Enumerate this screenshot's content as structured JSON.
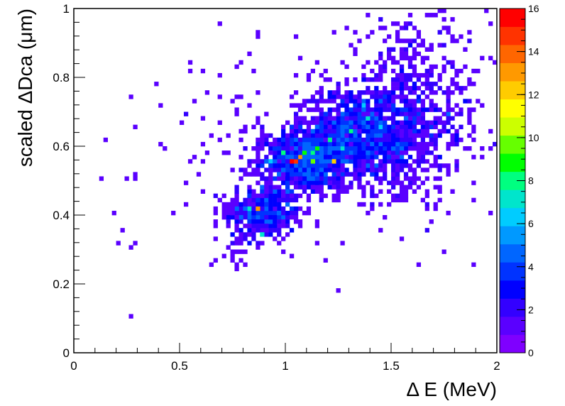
{
  "chart_data": {
    "type": "heatmap",
    "xlabel": "Δ E (MeV)",
    "ylabel": "scaled ΔDca (μm)",
    "xlim": [
      0,
      2
    ],
    "ylim": [
      0,
      1
    ],
    "zlim": [
      0,
      16
    ],
    "x_ticks": [
      "0",
      "0.5",
      "1",
      "1.5",
      "2"
    ],
    "y_ticks": [
      "0",
      "0.2",
      "0.4",
      "0.6",
      "0.8",
      "1"
    ],
    "z_ticks": [
      "0",
      "2",
      "4",
      "6",
      "8",
      "10",
      "12",
      "14",
      "16"
    ],
    "bin_width_x": 0.02,
    "bin_width_y": 0.0125,
    "colormap": [
      "#7f00ff",
      "#5a00ff",
      "#3300ff",
      "#0000ff",
      "#0033ff",
      "#0066ff",
      "#0099ff",
      "#00ccff",
      "#00e5cc",
      "#00ff80",
      "#00ff00",
      "#66ff00",
      "#ccff00",
      "#ffff00",
      "#ffcc00",
      "#ff9900",
      "#ff6600",
      "#ff3300",
      "#ff0000"
    ],
    "clusters": [
      {
        "x": 0.9,
        "y": 0.41,
        "sx": 0.09,
        "sy": 0.04,
        "n": 420
      },
      {
        "x": 1.1,
        "y": 0.56,
        "sx": 0.1,
        "sy": 0.04,
        "n": 900
      },
      {
        "x": 1.35,
        "y": 0.63,
        "sx": 0.15,
        "sy": 0.07,
        "n": 1200
      },
      {
        "x": 1.6,
        "y": 0.7,
        "sx": 0.18,
        "sy": 0.13,
        "n": 650
      },
      {
        "x": 0.95,
        "y": 0.6,
        "sx": 0.3,
        "sy": 0.12,
        "n": 160
      },
      {
        "x": 0.8,
        "y": 0.3,
        "sx": 0.05,
        "sy": 0.03,
        "n": 25
      }
    ],
    "hot_bins": [
      {
        "x": 1.02,
        "y": 0.56,
        "v": 16
      },
      {
        "x": 1.04,
        "y": 0.56,
        "v": 15
      },
      {
        "x": 1.06,
        "y": 0.565,
        "v": 13
      },
      {
        "x": 0.86,
        "y": 0.42,
        "v": 13
      },
      {
        "x": 1.22,
        "y": 0.56,
        "v": 12
      },
      {
        "x": 1.12,
        "y": 0.56,
        "v": 10
      },
      {
        "x": 1.08,
        "y": 0.58,
        "v": 9
      },
      {
        "x": 1.16,
        "y": 0.6,
        "v": 9
      },
      {
        "x": 1.2,
        "y": 0.62,
        "v": 8
      },
      {
        "x": 1.3,
        "y": 0.64,
        "v": 8
      },
      {
        "x": 0.98,
        "y": 0.58,
        "v": 8
      },
      {
        "x": 1.38,
        "y": 0.68,
        "v": 7
      },
      {
        "x": 1.26,
        "y": 0.6,
        "v": 7
      },
      {
        "x": 0.82,
        "y": 0.42,
        "v": 7
      },
      {
        "x": 0.88,
        "y": 0.34,
        "v": 7
      },
      {
        "x": 1.14,
        "y": 0.58,
        "v": 8
      },
      {
        "x": 0.94,
        "y": 0.56,
        "v": 6
      },
      {
        "x": 1.44,
        "y": 0.66,
        "v": 6
      },
      {
        "x": 1.36,
        "y": 0.72,
        "v": 6
      }
    ],
    "isolated_points": [
      {
        "x": 0.26,
        "y": 0.1,
        "v": 1
      },
      {
        "x": 0.26,
        "y": 0.31,
        "v": 1
      },
      {
        "x": 0.28,
        "y": 0.32,
        "v": 1
      },
      {
        "x": 0.22,
        "y": 0.36,
        "v": 1
      },
      {
        "x": 0.18,
        "y": 0.4,
        "v": 1
      },
      {
        "x": 0.24,
        "y": 0.5,
        "v": 1
      },
      {
        "x": 0.28,
        "y": 0.5,
        "v": 1
      },
      {
        "x": 0.28,
        "y": 0.65,
        "v": 1
      },
      {
        "x": 0.4,
        "y": 0.72,
        "v": 1
      },
      {
        "x": 0.42,
        "y": 0.6,
        "v": 1
      },
      {
        "x": 0.82,
        "y": 0.87,
        "v": 1
      },
      {
        "x": 0.76,
        "y": 0.83,
        "v": 1
      },
      {
        "x": 0.68,
        "y": 0.81,
        "v": 1
      },
      {
        "x": 0.62,
        "y": 0.75,
        "v": 1
      },
      {
        "x": 1.76,
        "y": 0.4,
        "v": 1
      },
      {
        "x": 1.96,
        "y": 0.41,
        "v": 1
      },
      {
        "x": 1.92,
        "y": 0.6,
        "v": 1
      },
      {
        "x": 1.96,
        "y": 0.6,
        "v": 1
      },
      {
        "x": 1.86,
        "y": 0.6,
        "v": 1
      },
      {
        "x": 1.32,
        "y": 0.93,
        "v": 1
      },
      {
        "x": 1.38,
        "y": 0.92,
        "v": 1
      },
      {
        "x": 1.68,
        "y": 0.98,
        "v": 1
      },
      {
        "x": 1.72,
        "y": 0.99,
        "v": 1
      },
      {
        "x": 1.86,
        "y": 0.93,
        "v": 1
      },
      {
        "x": 0.76,
        "y": 0.26,
        "v": 1
      },
      {
        "x": 0.64,
        "y": 0.26,
        "v": 1
      },
      {
        "x": 0.66,
        "y": 0.27,
        "v": 1
      },
      {
        "x": 0.92,
        "y": 0.34,
        "v": 3
      },
      {
        "x": 0.7,
        "y": 0.28,
        "v": 1
      },
      {
        "x": 1.02,
        "y": 0.28,
        "v": 1
      }
    ],
    "seed": 12345,
    "grid": false,
    "legend": "color scale on right"
  }
}
